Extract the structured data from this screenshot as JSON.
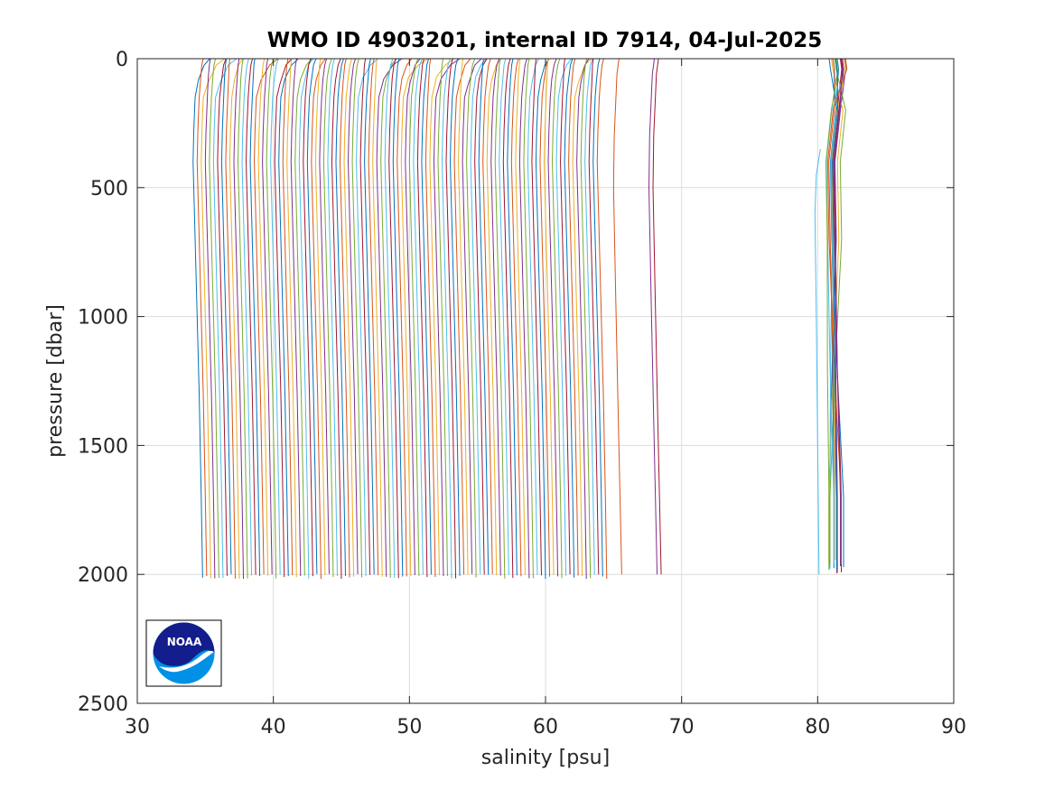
{
  "chart_data": {
    "type": "line",
    "title": "WMO ID 4903201, internal ID 7914, 04-Jul-2025",
    "xlabel": "salinity [psu]",
    "ylabel": "pressure [dbar]",
    "xlim": [
      30,
      90
    ],
    "ylim": [
      0,
      2500
    ],
    "y_reversed": true,
    "grid": true,
    "xticks": [
      "30",
      "40",
      "50",
      "60",
      "70",
      "80",
      "90"
    ],
    "yticks": [
      "0",
      "500",
      "1000",
      "1500",
      "2000",
      "2500"
    ],
    "offset_between_profiles": 0.3,
    "series_colors": [
      "#0072BD",
      "#D95319",
      "#EDB120",
      "#7E2F8E",
      "#77AC30",
      "#4DBEEE",
      "#A2142F"
    ],
    "profile_groups": [
      {
        "name": "main",
        "count": 100,
        "surface_salinity_start": 34.3,
        "deep_salinity_start": 34.9,
        "bottom_pressure": 2000
      },
      {
        "name": "middle-a",
        "salinity_at_0": 65.4,
        "salinity_at_500": 65.0,
        "salinity_at_2000": 65.6,
        "bottom_pressure": 2000
      },
      {
        "name": "middle-b",
        "salinity_at_0": 68.0,
        "salinity_at_500": 67.6,
        "salinity_at_2000": 68.2,
        "bottom_pressure": 2000
      },
      {
        "name": "middle-c",
        "salinity_at_0": 68.3,
        "salinity_at_500": 67.9,
        "salinity_at_2000": 68.5,
        "bottom_pressure": 2000
      },
      {
        "name": "right-cluster",
        "count": 16,
        "salinity_range_at_2000": [
          80.8,
          82.0
        ],
        "bottom_pressure": 1950
      }
    ],
    "logo": {
      "text": "NOAA"
    }
  }
}
